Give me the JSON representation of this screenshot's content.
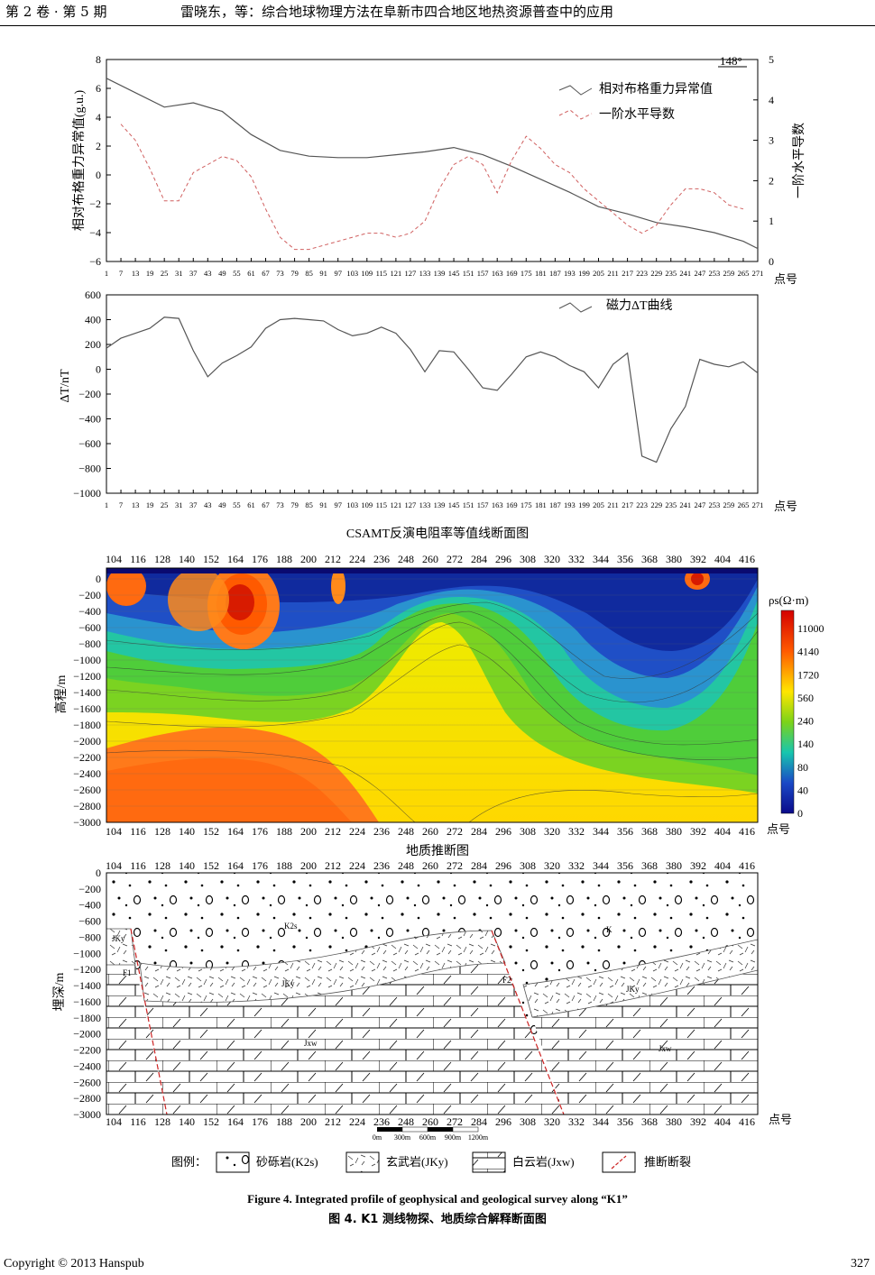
{
  "header": {
    "journal": "第 2 卷 · 第 5 期",
    "title": "雷晓东，等：综合地球物理方法在阜新市四合地区地热资源普查中的应用"
  },
  "panel1": {
    "left_axis_label": "相对布格重力异常值(g.u.)",
    "right_axis_label": "一阶水平导数",
    "azimuth": "148°",
    "legend": [
      "相对布格重力异常值",
      "一阶水平导数"
    ],
    "x_suffix": "点号"
  },
  "panel2": {
    "y_label": "ΔT/nT",
    "legend": [
      "磁力ΔT曲线"
    ],
    "x_suffix": "点号"
  },
  "panel3": {
    "title": "CSAMT反演电阻率等值线断面图",
    "y_label": "高程/m",
    "colorbar_title": "ρs(Ω·m)",
    "colorbar_ticks": [
      "11000",
      "4140",
      "1720",
      "560",
      "240",
      "140",
      "80",
      "40",
      "0"
    ],
    "x_suffix": "点号"
  },
  "panel4": {
    "title": "地质推断图",
    "y_label": "埋深/m",
    "x_suffix": "点号",
    "rock_labels": [
      "K2s",
      "K",
      "JKy",
      "JKy",
      "JKy",
      "Jxw",
      "Jxw",
      "F1",
      "F2"
    ],
    "scale_labels": [
      "0m",
      "300m",
      "600m",
      "900m",
      "1200m"
    ]
  },
  "legend": {
    "prefix": "图例：",
    "items": [
      "砂砾岩(K2s)",
      "玄武岩(JKy)",
      "白云岩(Jxw)",
      "推断断裂"
    ]
  },
  "captions": {
    "en": "Figure 4. Integrated profile of geophysical and geological survey along “K1”",
    "zh": "图 4. K1 测线物探、地质综合解释断面图"
  },
  "footer": {
    "copyright": "Copyright © 2013 Hanspub",
    "page": "327"
  },
  "chart_data": [
    {
      "type": "line",
      "title": "",
      "x_ticks": [
        "1",
        "7",
        "13",
        "19",
        "25",
        "31",
        "37",
        "43",
        "49",
        "55",
        "61",
        "67",
        "73",
        "79",
        "85",
        "91",
        "97",
        "103",
        "109",
        "115",
        "121",
        "127",
        "133",
        "139",
        "145",
        "151",
        "157",
        "163",
        "169",
        "175",
        "181",
        "187",
        "193",
        "199",
        "205",
        "211",
        "217",
        "223",
        "229",
        "235",
        "241",
        "247",
        "253",
        "259",
        "265",
        "271"
      ],
      "ylim_left": [
        -6,
        8
      ],
      "ylim_right": [
        0,
        5
      ],
      "y_ticks_left": [
        "8",
        "6",
        "4",
        "2",
        "0",
        "−2",
        "−4",
        "−6"
      ],
      "y_ticks_right": [
        "5",
        "4",
        "3",
        "2",
        "1",
        "0"
      ],
      "series": [
        {
          "name": "相对布格重力异常值",
          "axis": "left",
          "x": [
            1,
            13,
            25,
            37,
            49,
            61,
            73,
            85,
            97,
            109,
            121,
            133,
            145,
            157,
            169,
            181,
            193,
            205,
            217,
            229,
            241,
            253,
            265,
            271
          ],
          "y": [
            6.7,
            5.7,
            4.7,
            5.0,
            4.4,
            2.8,
            1.7,
            1.3,
            1.2,
            1.2,
            1.4,
            1.6,
            1.9,
            1.4,
            0.6,
            -0.3,
            -1.2,
            -2.2,
            -2.7,
            -3.3,
            -3.6,
            -4.0,
            -4.6,
            -5.1
          ]
        },
        {
          "name": "一阶水平导数",
          "axis": "right",
          "x": [
            7,
            13,
            19,
            25,
            31,
            37,
            43,
            49,
            55,
            61,
            67,
            73,
            79,
            85,
            91,
            97,
            103,
            109,
            115,
            121,
            127,
            133,
            139,
            145,
            151,
            157,
            163,
            169,
            175,
            181,
            187,
            193,
            199,
            205,
            211,
            217,
            223,
            229,
            235,
            241,
            247,
            253,
            259,
            265
          ],
          "y": [
            3.4,
            3.0,
            2.3,
            1.5,
            1.5,
            2.2,
            2.4,
            2.6,
            2.5,
            2.1,
            1.3,
            0.6,
            0.3,
            0.3,
            0.4,
            0.5,
            0.6,
            0.7,
            0.7,
            0.6,
            0.7,
            1.0,
            1.8,
            2.4,
            2.6,
            2.4,
            1.7,
            2.5,
            3.1,
            2.8,
            2.4,
            2.2,
            1.8,
            1.5,
            1.2,
            0.9,
            0.7,
            0.9,
            1.4,
            1.8,
            1.8,
            1.7,
            1.4,
            1.3
          ]
        }
      ]
    },
    {
      "type": "line",
      "title": "",
      "x_ticks": [
        "1",
        "7",
        "13",
        "19",
        "25",
        "31",
        "37",
        "43",
        "49",
        "55",
        "61",
        "67",
        "73",
        "79",
        "85",
        "91",
        "97",
        "103",
        "109",
        "115",
        "121",
        "127",
        "133",
        "139",
        "145",
        "151",
        "157",
        "163",
        "169",
        "175",
        "181",
        "187",
        "193",
        "199",
        "205",
        "211",
        "217",
        "223",
        "229",
        "235",
        "241",
        "247",
        "253",
        "259",
        "265",
        "271"
      ],
      "ylim": [
        -1000,
        600
      ],
      "y_ticks": [
        "600",
        "400",
        "200",
        "0",
        "−200",
        "−400",
        "−600",
        "−800",
        "−1000"
      ],
      "series": [
        {
          "name": "磁力ΔT曲线",
          "x": [
            1,
            7,
            13,
            19,
            25,
            31,
            37,
            43,
            49,
            55,
            61,
            67,
            73,
            79,
            85,
            91,
            97,
            103,
            109,
            115,
            121,
            127,
            133,
            139,
            145,
            151,
            157,
            163,
            169,
            175,
            181,
            187,
            193,
            199,
            205,
            211,
            217,
            223,
            229,
            235,
            241,
            247,
            253,
            259,
            265,
            271
          ],
          "y": [
            170,
            250,
            290,
            330,
            420,
            410,
            150,
            -60,
            50,
            110,
            180,
            330,
            400,
            410,
            400,
            390,
            320,
            270,
            290,
            340,
            290,
            160,
            -20,
            150,
            140,
            0,
            -150,
            -170,
            -40,
            100,
            140,
            100,
            30,
            -20,
            -150,
            40,
            130,
            -700,
            -750,
            -480,
            -300,
            80,
            40,
            20,
            60,
            -30
          ]
        }
      ]
    },
    {
      "type": "heatmap",
      "title": "CSAMT反演电阻率等值线断面图",
      "x_ticks": [
        "104",
        "116",
        "128",
        "140",
        "152",
        "164",
        "176",
        "188",
        "200",
        "212",
        "224",
        "236",
        "248",
        "260",
        "272",
        "284",
        "296",
        "308",
        "320",
        "332",
        "344",
        "356",
        "368",
        "380",
        "392",
        "404",
        "416"
      ],
      "y_ticks": [
        "0",
        "−200",
        "−400",
        "−600",
        "−800",
        "−1000",
        "−1200",
        "−1400",
        "−1600",
        "−1800",
        "−2000",
        "−2200",
        "−2400",
        "−2600",
        "−2800",
        "−3000"
      ],
      "ylabel": "高程/m",
      "colorbar": [
        "11000",
        "4140",
        "1720",
        "560",
        "240",
        "140",
        "80",
        "40",
        "0"
      ]
    }
  ]
}
